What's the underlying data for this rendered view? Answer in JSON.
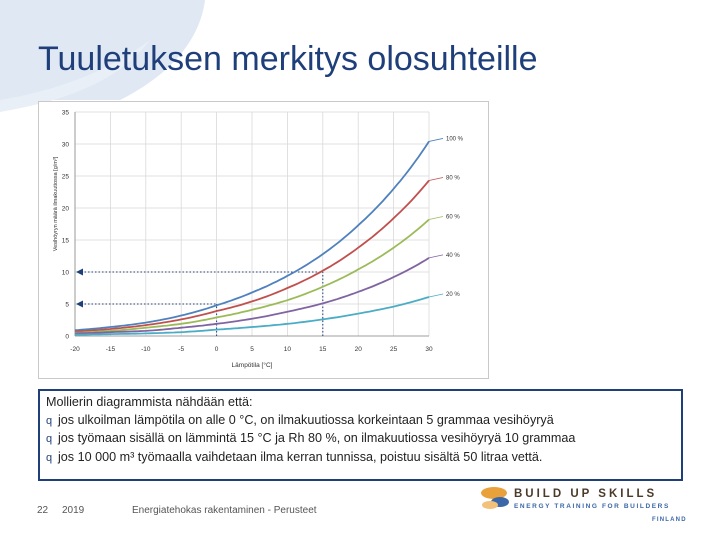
{
  "slide": {
    "title": "Tuuletuksen merkitys olosuhteille",
    "textbox": {
      "intro": "Mollierin diagrammista nähdään että:",
      "bullets": [
        "jos ulkoilman lämpötila on alle 0 °C, on ilmakuutiossa korkeintaan 5 grammaa vesihöyryä",
        "jos työmaan sisällä on lämmintä 15 °C ja Rh 80 %, on ilmakuutiossa vesihöyryä 10 grammaa",
        "jos 10 000 m³ työmaalla vaihdetaan ilma kerran tunnissa, poistuu sisältä 50 litraa vettä."
      ],
      "bullet_glyph": "q"
    },
    "footer": {
      "page_number": "22",
      "year": "2019",
      "course": "Energiatehokas rakentaminen - Perusteet"
    },
    "logo": {
      "line1": "BUILD UP SKILLS",
      "line2": "ENERGY TRAINING FOR BUILDERS",
      "line3": "FINLAND"
    },
    "colors": {
      "title": "#1f3f7a",
      "swoosh": "#dfe8f3",
      "logo_orange": "#e9a23b",
      "logo_blue": "#3b66a8"
    }
  },
  "chart_data": {
    "type": "line",
    "xlabel": "Lämpötila [°C]",
    "ylabel": "Vesihöyryn määrä ilmakuutiossa [g/m³]",
    "xlim": [
      -20,
      30
    ],
    "ylim": [
      0,
      35
    ],
    "xticks": [
      -20,
      -15,
      -10,
      -5,
      0,
      5,
      10,
      15,
      20,
      25,
      30
    ],
    "yticks": [
      0,
      5,
      10,
      15,
      20,
      25,
      30,
      35
    ],
    "grid": true,
    "legend": "inline-right",
    "x": [
      -20,
      -15,
      -10,
      -5,
      0,
      5,
      10,
      15,
      20,
      25,
      30
    ],
    "series": [
      {
        "name": "100 %",
        "color": "#4f81bd",
        "values": [
          0.9,
          1.4,
          2.1,
          3.2,
          4.8,
          6.8,
          9.4,
          12.8,
          17.3,
          23.0,
          30.4
        ]
      },
      {
        "name": "80 %",
        "color": "#c0504d",
        "values": [
          0.7,
          1.1,
          1.7,
          2.6,
          3.9,
          5.4,
          7.5,
          10.2,
          13.8,
          18.4,
          24.3
        ]
      },
      {
        "name": "60 %",
        "color": "#9bbb59",
        "values": [
          0.5,
          0.8,
          1.3,
          1.9,
          2.9,
          4.1,
          5.6,
          7.7,
          10.4,
          13.8,
          18.2
        ]
      },
      {
        "name": "40 %",
        "color": "#8064a2",
        "values": [
          0.4,
          0.6,
          0.8,
          1.3,
          1.9,
          2.7,
          3.8,
          5.1,
          6.9,
          9.2,
          12.2
        ]
      },
      {
        "name": "20 %",
        "color": "#4bacc6",
        "values": [
          0.2,
          0.3,
          0.4,
          0.6,
          1.0,
          1.4,
          1.9,
          2.6,
          3.5,
          4.6,
          6.1
        ]
      }
    ],
    "annotations": [
      {
        "x": 0,
        "y": 5,
        "color": "#1f3f7a"
      },
      {
        "x": 15,
        "y": 10,
        "color": "#1f3f7a"
      }
    ]
  }
}
